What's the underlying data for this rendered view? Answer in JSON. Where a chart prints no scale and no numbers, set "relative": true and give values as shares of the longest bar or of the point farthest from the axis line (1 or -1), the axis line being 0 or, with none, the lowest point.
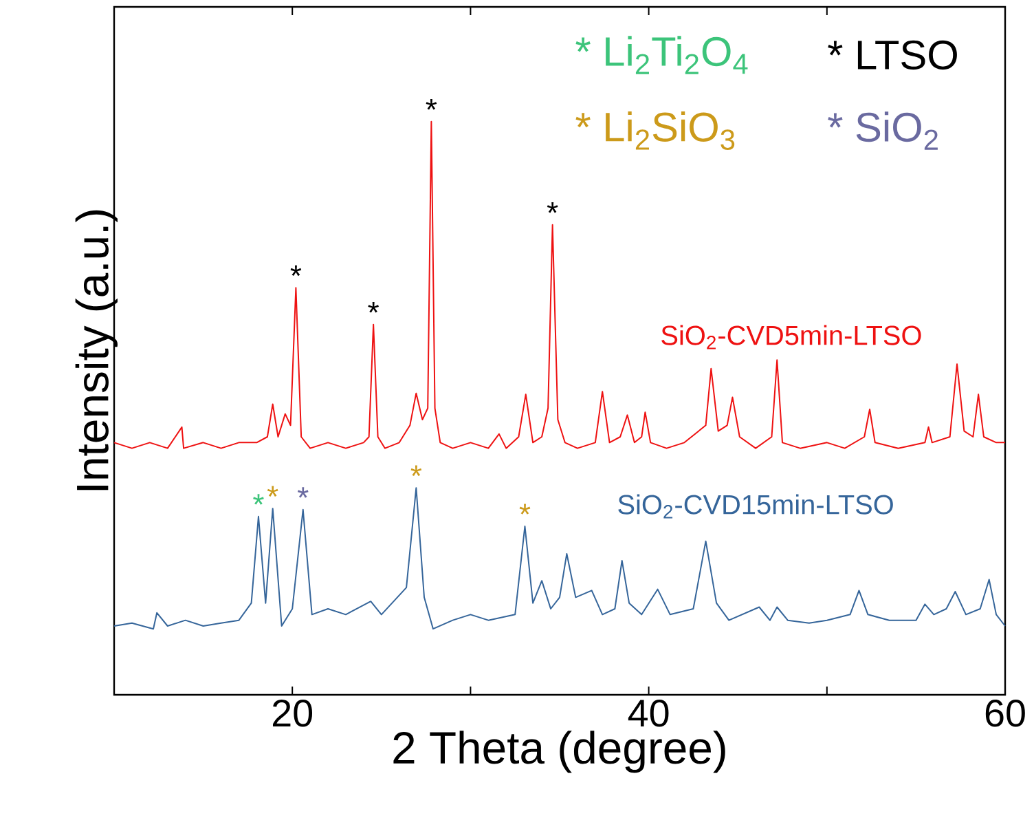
{
  "chart_data": {
    "type": "line",
    "xlabel": "2 Theta (degree)",
    "ylabel": "Intensity (a.u.)",
    "relative": true,
    "xlim": [
      10,
      60
    ],
    "xticks": [
      20,
      {
        "value": 30,
        "label": null
      },
      40,
      {
        "value": 50,
        "label": null
      },
      60
    ],
    "legend": false,
    "marker": "none",
    "line_style": "solid",
    "grid": false,
    "series": [
      {
        "name": "SiO$_{2}$-CVD5min-LTSO",
        "color": "#ee1111",
        "x": [
          10,
          11,
          12,
          13,
          13.8,
          13.9,
          15,
          16,
          17,
          18,
          18.6,
          18.9,
          19.2,
          19.6,
          19.9,
          20.2,
          20.5,
          21,
          22,
          23,
          24,
          24.3,
          24.55,
          24.8,
          25.2,
          26,
          26.6,
          26.95,
          27.3,
          27.6,
          27.8,
          28.0,
          28.3,
          29,
          30,
          31,
          31.6,
          32,
          32.7,
          33.1,
          33.5,
          34,
          34.35,
          34.6,
          34.9,
          35.3,
          36,
          37,
          37.4,
          37.8,
          38.4,
          38.8,
          39.2,
          39.6,
          39.8,
          40.1,
          41,
          42,
          43.2,
          43.5,
          43.9,
          44.4,
          44.7,
          45.1,
          46,
          46.9,
          47.2,
          47.5,
          48.5,
          50,
          51,
          52.1,
          52.4,
          52.7,
          54,
          55.5,
          55.7,
          55.9,
          56.9,
          57.3,
          57.7,
          58.2,
          58.5,
          58.8,
          59.5,
          60
        ],
        "values": [
          0.44,
          0.43,
          0.44,
          0.43,
          0.467,
          0.43,
          0.44,
          0.43,
          0.44,
          0.44,
          0.45,
          0.507,
          0.45,
          0.49,
          0.47,
          0.71,
          0.45,
          0.43,
          0.44,
          0.43,
          0.44,
          0.45,
          0.646,
          0.45,
          0.43,
          0.44,
          0.47,
          0.526,
          0.48,
          0.5,
          1.0,
          0.5,
          0.44,
          0.43,
          0.44,
          0.43,
          0.455,
          0.43,
          0.45,
          0.524,
          0.44,
          0.45,
          0.5,
          0.82,
          0.48,
          0.44,
          0.43,
          0.44,
          0.529,
          0.44,
          0.45,
          0.488,
          0.44,
          0.45,
          0.493,
          0.44,
          0.43,
          0.44,
          0.47,
          0.569,
          0.46,
          0.47,
          0.519,
          0.45,
          0.43,
          0.45,
          0.584,
          0.44,
          0.43,
          0.44,
          0.43,
          0.45,
          0.498,
          0.44,
          0.43,
          0.44,
          0.467,
          0.44,
          0.45,
          0.577,
          0.46,
          0.45,
          0.524,
          0.45,
          0.44,
          0.44
        ]
      },
      {
        "name": "SiO$_{2}$-CVD15min-LTSO",
        "color": "#35659a",
        "x": [
          10,
          11,
          12.2,
          12.4,
          13,
          14,
          15,
          16,
          17,
          17.7,
          18.1,
          18.5,
          18.9,
          19.4,
          20.0,
          20.6,
          21.1,
          22,
          23,
          24.4,
          25,
          26.4,
          26.95,
          27.4,
          27.9,
          29,
          30,
          31,
          32.5,
          33.05,
          33.5,
          34.0,
          34.5,
          35.0,
          35.4,
          35.9,
          36.8,
          37.4,
          38.1,
          38.5,
          38.9,
          39.6,
          40.5,
          41.2,
          42.5,
          43.2,
          43.8,
          44.5,
          46.2,
          46.8,
          47.2,
          47.8,
          49,
          50,
          51.3,
          51.8,
          52.3,
          53.5,
          55.0,
          55.5,
          56,
          56.7,
          57.2,
          57.8,
          58.6,
          59.1,
          59.5,
          60
        ],
        "values": [
          0.12,
          0.125,
          0.115,
          0.143,
          0.12,
          0.13,
          0.12,
          0.125,
          0.13,
          0.16,
          0.311,
          0.16,
          0.325,
          0.12,
          0.15,
          0.323,
          0.14,
          0.15,
          0.14,
          0.163,
          0.14,
          0.187,
          0.361,
          0.17,
          0.115,
          0.13,
          0.14,
          0.13,
          0.14,
          0.294,
          0.16,
          0.199,
          0.15,
          0.17,
          0.246,
          0.17,
          0.182,
          0.14,
          0.15,
          0.234,
          0.16,
          0.14,
          0.184,
          0.14,
          0.15,
          0.268,
          0.16,
          0.13,
          0.153,
          0.13,
          0.153,
          0.13,
          0.125,
          0.13,
          0.14,
          0.182,
          0.14,
          0.13,
          0.13,
          0.158,
          0.14,
          0.15,
          0.18,
          0.14,
          0.15,
          0.201,
          0.14,
          0.12
        ]
      }
    ],
    "annotations": [
      "* Li$_{2}$Ti$_{2}$O$_{4}$",
      "* LTSO",
      "* Li$_{2}$SiO$_{3}$",
      "* SiO$_{2}$",
      {
        "text": "*",
        "x": 20.2,
        "y": 0.71
      },
      {
        "text": "*",
        "x": 24.55,
        "y": 0.646
      },
      {
        "text": "*",
        "x": 27.8,
        "y": 1.0
      },
      {
        "text": "*",
        "x": 34.6,
        "y": 0.82
      },
      {
        "text": "*",
        "x": 18.1,
        "y": 0.311
      },
      {
        "text": "*",
        "x": 18.9,
        "y": 0.325
      },
      {
        "text": "*",
        "x": 20.6,
        "y": 0.323
      },
      {
        "text": "*",
        "x": 26.95,
        "y": 0.361
      },
      {
        "text": "*",
        "x": 33.05,
        "y": 0.294
      }
    ]
  }
}
